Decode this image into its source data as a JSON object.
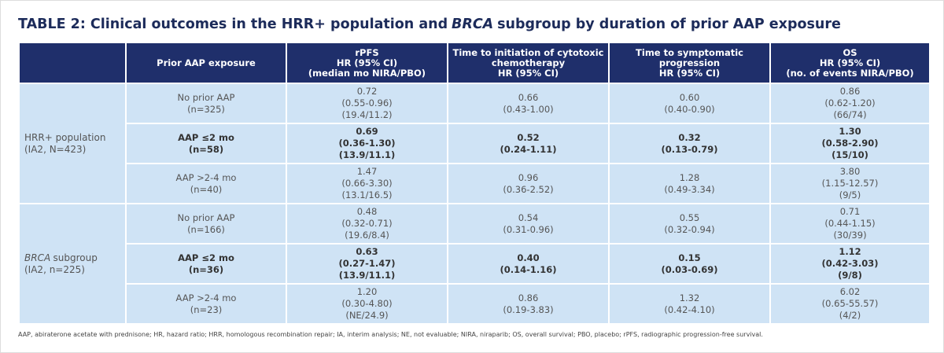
{
  "title": [
    {
      "text": "TABLE 2: Clinical outcomes in the HRR+ population and"
    },
    {
      "text": "BRCA",
      "italic": true
    },
    {
      "text": "subgroup by duration of prior AAP exposure"
    }
  ],
  "table": {
    "header": [
      [
        "Prior AAP exposure"
      ],
      [
        "rPFS",
        "HR (95% CI)",
        "(median mo NIRA/PBO)"
      ],
      [
        "Time to initiation of cytotoxic",
        "chemotherapy",
        "HR (95% CI)"
      ],
      [
        "Time to symptomatic",
        "progression",
        "HR (95% CI)"
      ],
      [
        "OS",
        "HR (95% CI)",
        "(no. of events NIRA/PBO)"
      ]
    ],
    "groups": [
      {
        "label": [
          {
            "text": "HRR+ population"
          }
        ],
        "sublabel": "(IA2, N=423)",
        "rows": [
          {
            "bold": false,
            "cells": [
              [
                "No prior AAP",
                "(n=325)"
              ],
              [
                "0.72",
                "(0.55-0.96)",
                "(19.4/11.2)"
              ],
              [
                "0.66",
                "(0.43-1.00)"
              ],
              [
                "0.60",
                "(0.40-0.90)"
              ],
              [
                "0.86",
                "(0.62-1.20)",
                "(66/74)"
              ]
            ]
          },
          {
            "bold": true,
            "cells": [
              [
                "AAP ≤2 mo",
                "(n=58)"
              ],
              [
                "0.69",
                "(0.36-1.30)",
                "(13.9/11.1)"
              ],
              [
                "0.52",
                "(0.24-1.11)"
              ],
              [
                "0.32",
                "(0.13-0.79)"
              ],
              [
                "1.30",
                "(0.58-2.90)",
                "(15/10)"
              ]
            ]
          },
          {
            "bold": false,
            "cells": [
              [
                "AAP >2-4 mo",
                "(n=40)"
              ],
              [
                "1.47",
                "(0.66-3.30)",
                "(13.1/16.5)"
              ],
              [
                "0.96",
                "(0.36-2.52)"
              ],
              [
                "1.28",
                "(0.49-3.34)"
              ],
              [
                "3.80",
                "(1.15-12.57)",
                "(9/5)"
              ]
            ]
          }
        ]
      },
      {
        "label": [
          {
            "text": "BRCA",
            "italic": true
          },
          {
            "text": "subgroup"
          }
        ],
        "sublabel": "(IA2, n=225)",
        "rows": [
          {
            "bold": false,
            "cells": [
              [
                "No prior AAP",
                "(n=166)"
              ],
              [
                "0.48",
                "(0.32-0.71)",
                "(19.6/8.4)"
              ],
              [
                "0.54",
                "(0.31-0.96)"
              ],
              [
                "0.55",
                "(0.32-0.94)"
              ],
              [
                "0.71",
                "(0.44-1.15)",
                "(30/39)"
              ]
            ]
          },
          {
            "bold": true,
            "cells": [
              [
                "AAP ≤2 mo",
                "(n=36)"
              ],
              [
                "0.63",
                "(0.27-1.47)",
                "(13.9/11.1)"
              ],
              [
                "0.40",
                "(0.14-1.16)"
              ],
              [
                "0.15",
                "(0.03-0.69)"
              ],
              [
                "1.12",
                "(0.42-3.03)",
                "(9/8)"
              ]
            ]
          },
          {
            "bold": false,
            "cells": [
              [
                "AAP >2-4 mo",
                "(n=23)"
              ],
              [
                "1.20",
                "(0.30-4.80)",
                "(NE/24.9)"
              ],
              [
                "0.86",
                "(0.19-3.83)"
              ],
              [
                "1.32",
                "(0.42-4.10)"
              ],
              [
                "6.02",
                "(0.65-55.57)",
                "(4/2)"
              ]
            ]
          }
        ]
      }
    ]
  },
  "footnote": "AAP, abiraterone acetate with prednisone; HR, hazard ratio; HRR, homologous recombination repair; IA, interim analysis; NE, not evaluable; NIRA, niraparib; OS, overall survival; PBO, placebo; rPFS, radiographic progression-free survival."
}
